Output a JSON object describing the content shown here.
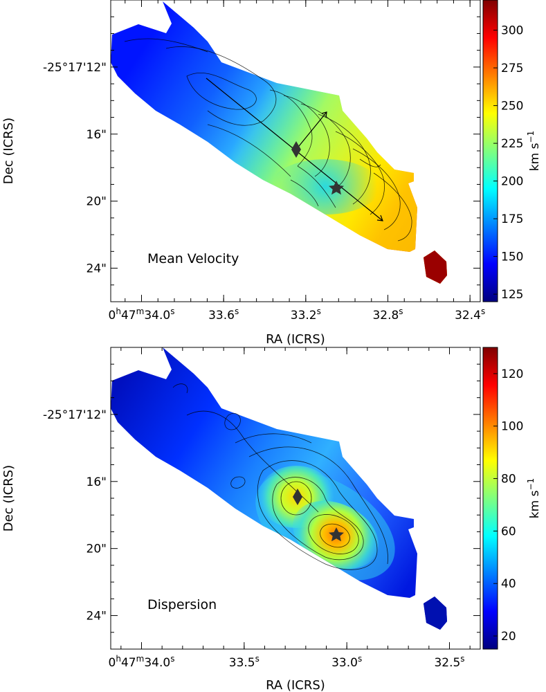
{
  "colormap": [
    "#00007f",
    "#0000ff",
    "#007fff",
    "#00ffff",
    "#7fff7f",
    "#ffff00",
    "#ff7f00",
    "#ff0000",
    "#7f0000"
  ],
  "chart_data": [
    {
      "type": "heatmap",
      "panel_label": "Mean Velocity",
      "xlabel": "RA (ICRS)",
      "ylabel": "Dec (ICRS)",
      "x_ticks": [
        {
          "pre": "0",
          "sup1": "h",
          "mid": "47",
          "sup2": "m",
          "main": "34.0",
          "sup3": "s",
          "value_s": 34.0
        },
        {
          "pre": "",
          "sup1": "",
          "mid": "",
          "sup2": "",
          "main": "33.6",
          "sup3": "s",
          "value_s": 33.6
        },
        {
          "pre": "",
          "sup1": "",
          "mid": "",
          "sup2": "",
          "main": "33.2",
          "sup3": "s",
          "value_s": 33.2
        },
        {
          "pre": "",
          "sup1": "",
          "mid": "",
          "sup2": "",
          "main": "32.8",
          "sup3": "s",
          "value_s": 32.8
        },
        {
          "pre": "",
          "sup1": "",
          "mid": "",
          "sup2": "",
          "main": "32.4",
          "sup3": "s",
          "value_s": 32.4
        }
      ],
      "y_ticks": [
        {
          "label": "-25°17'12\"",
          "value_arcsec": 12
        },
        {
          "label": "16\"",
          "value_arcsec": 16
        },
        {
          "label": "20\"",
          "value_arcsec": 20
        },
        {
          "label": "24\"",
          "value_arcsec": 24
        }
      ],
      "xlim_s": [
        34.15,
        32.35
      ],
      "ylim_arcsec": [
        8.0,
        26.0
      ],
      "colorbar": {
        "label": "km s",
        "label_sup": "−1",
        "ticks": [
          "125",
          "150",
          "175",
          "200",
          "225",
          "250",
          "275",
          "300"
        ],
        "range": [
          120,
          320
        ]
      },
      "markers": [
        {
          "type": "diamond",
          "x_s": 33.19,
          "y_arcsec": 17.1
        },
        {
          "type": "star",
          "x_s": 33.02,
          "y_arcsec": 19.3
        }
      ],
      "arrows": [
        {
          "from_s": [
            33.56,
            13.1
          ],
          "to_s": [
            32.78,
            21.3
          ],
          "note": "major axis"
        },
        {
          "from_s": [
            33.19,
            17.1
          ],
          "to_s": [
            33.09,
            15.3
          ]
        }
      ],
      "summary": {
        "northwest_velocity_kms": 135,
        "center_velocity_kms": 200,
        "southeast_velocity_kms": 290,
        "isolated_blob_velocity_kms": 310
      }
    },
    {
      "type": "heatmap",
      "panel_label": "Dispersion",
      "xlabel": "RA (ICRS)",
      "ylabel": "Dec (ICRS)",
      "x_ticks": [
        {
          "pre": "0",
          "sup1": "h",
          "mid": "47",
          "sup2": "m",
          "main": "34.0",
          "sup3": "s",
          "value_s": 34.0
        },
        {
          "pre": "",
          "sup1": "",
          "mid": "",
          "sup2": "",
          "main": "33.5",
          "sup3": "s",
          "value_s": 33.5
        },
        {
          "pre": "",
          "sup1": "",
          "mid": "",
          "sup2": "",
          "main": "33.0",
          "sup3": "s",
          "value_s": 33.0
        },
        {
          "pre": "",
          "sup1": "",
          "mid": "",
          "sup2": "",
          "main": "32.5",
          "sup3": "s",
          "value_s": 32.5
        }
      ],
      "y_ticks": [
        {
          "label": "-25°17'12\"",
          "value_arcsec": 12
        },
        {
          "label": "16\"",
          "value_arcsec": 16
        },
        {
          "label": "20\"",
          "value_arcsec": 20
        },
        {
          "label": "24\"",
          "value_arcsec": 24
        }
      ],
      "xlim_s": [
        34.15,
        32.35
      ],
      "ylim_arcsec": [
        8.0,
        26.0
      ],
      "colorbar": {
        "label": "km s",
        "label_sup": "−1",
        "ticks": [
          "20",
          "40",
          "60",
          "80",
          "100",
          "120"
        ],
        "range": [
          15,
          130
        ]
      },
      "markers": [
        {
          "type": "diamond",
          "x_s": 33.19,
          "y_arcsec": 17.1
        },
        {
          "type": "star",
          "x_s": 33.02,
          "y_arcsec": 19.3
        }
      ],
      "summary": {
        "background_dispersion_kms": 25,
        "diamond_peak_kms": 85,
        "star_peak_kms": 105
      }
    }
  ]
}
